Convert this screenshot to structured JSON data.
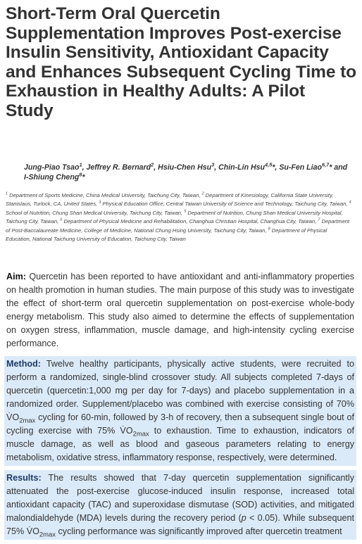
{
  "title": "Short-Term Oral Quercetin Supplementation Improves Post-exercise Insulin Sensitivity, Antioxidant Capacity and Enhances Subsequent Cycling Time to Exhaustion in Healthy Adults: A Pilot Study",
  "authors": [
    {
      "text": "Jung-Piao Tsao"
    },
    {
      "sup": "1"
    },
    {
      "text": ", Jeffrey R. Bernard"
    },
    {
      "sup": "2"
    },
    {
      "text": ", Hsiu-Chen Hsu"
    },
    {
      "sup": "3"
    },
    {
      "text": ", Chin-Lin Hsu"
    },
    {
      "sup": "4,5"
    },
    {
      "text": "*, Su-Fen Liao"
    },
    {
      "sup": "6,7"
    },
    {
      "text": "* and I-Shiung Cheng"
    },
    {
      "sup": "8"
    },
    {
      "text": "*"
    }
  ],
  "affiliations": [
    {
      "sup": "1"
    },
    {
      "text": " Department of Sports Medicine, China Medical University, Taichung City, Taiwan, "
    },
    {
      "sup": "2"
    },
    {
      "text": " Department of Kinesiology, California State University, Stanislaus, Turlock, CA, United States, "
    },
    {
      "sup": "3"
    },
    {
      "text": " Physical Education Office, Central Taiwan University of Science and Technology, Taichung City, Taiwan, "
    },
    {
      "sup": "4"
    },
    {
      "text": " School of Nutrition, Chung Shan Medical University, Taichung City, Taiwan, "
    },
    {
      "sup": "5"
    },
    {
      "text": " Department of Nutrition, Chung Shan Medical University Hospital, Taichung City, Taiwan, "
    },
    {
      "sup": "6"
    },
    {
      "text": " Department of Physical Medicine and Rehabilitation, Changhua Christian Hospital, Changhua City, Taiwan, "
    },
    {
      "sup": "7"
    },
    {
      "text": " Department of Post-Baccalaureate Medicine, College of Medicine, National Chung Hsing University, Taichung City, Taiwan, "
    },
    {
      "sup": "8"
    },
    {
      "text": " Department of Physical Education, National Taichung University of Education, Taichung City, Taiwan"
    }
  ],
  "abstract": [
    {
      "label": "Aim:",
      "highlighted": false,
      "body": [
        {
          "text": " Quercetin has been reported to have antioxidant and anti-inflammatory properties on health promotion in human studies. The main purpose of this study was to investigate the effect of short-term oral quercetin supplementation on post-exercise whole-body energy metabolism. This study also aimed to determine the effects of supplementation on oxygen stress, inflammation, muscle damage, and high-intensity cycling exercise performance."
        }
      ]
    },
    {
      "label": "Method:",
      "highlighted": true,
      "body": [
        {
          "text": " Twelve healthy participants, physically active students, were recruited to perform a randomized, single-blind crossover study. All subjects completed 7-days of quercetin (quercetin:1,000 mg per day for 7-days) and placebo supplementation in a randomized order. Supplement/placebo was combined with exercise consisting of 70% V̇O"
        },
        {
          "sub": "2max"
        },
        {
          "text": " cycling for 60-min, followed by 3-h of recovery, then a subsequent single bout of cycling exercise with 75% V̇O"
        },
        {
          "sub": "2max"
        },
        {
          "text": " to exhaustion. Time to exhaustion, indicators of muscle damage, as well as blood and gaseous parameters relating to energy metabolism, oxidative stress, inflammatory response, respectively, were determined."
        }
      ]
    },
    {
      "label": "Results:",
      "highlighted": true,
      "body": [
        {
          "text": " The results showed that 7-day quercetin supplementation significantly attenuated the post-exercise glucose-induced insulin response, increased total antioxidant capacity (TAC) and superoxidase dismutase (SOD) activities, and mitigated malondialdehyde (MDA) levels during the recovery period ("
        },
        {
          "italic": "p"
        },
        {
          "text": " < 0.05). While subsequent 75% V̇O"
        },
        {
          "sub": "2max"
        },
        {
          "text": " cycling performance was significantly improved after quercetin treatment"
        }
      ]
    }
  ]
}
